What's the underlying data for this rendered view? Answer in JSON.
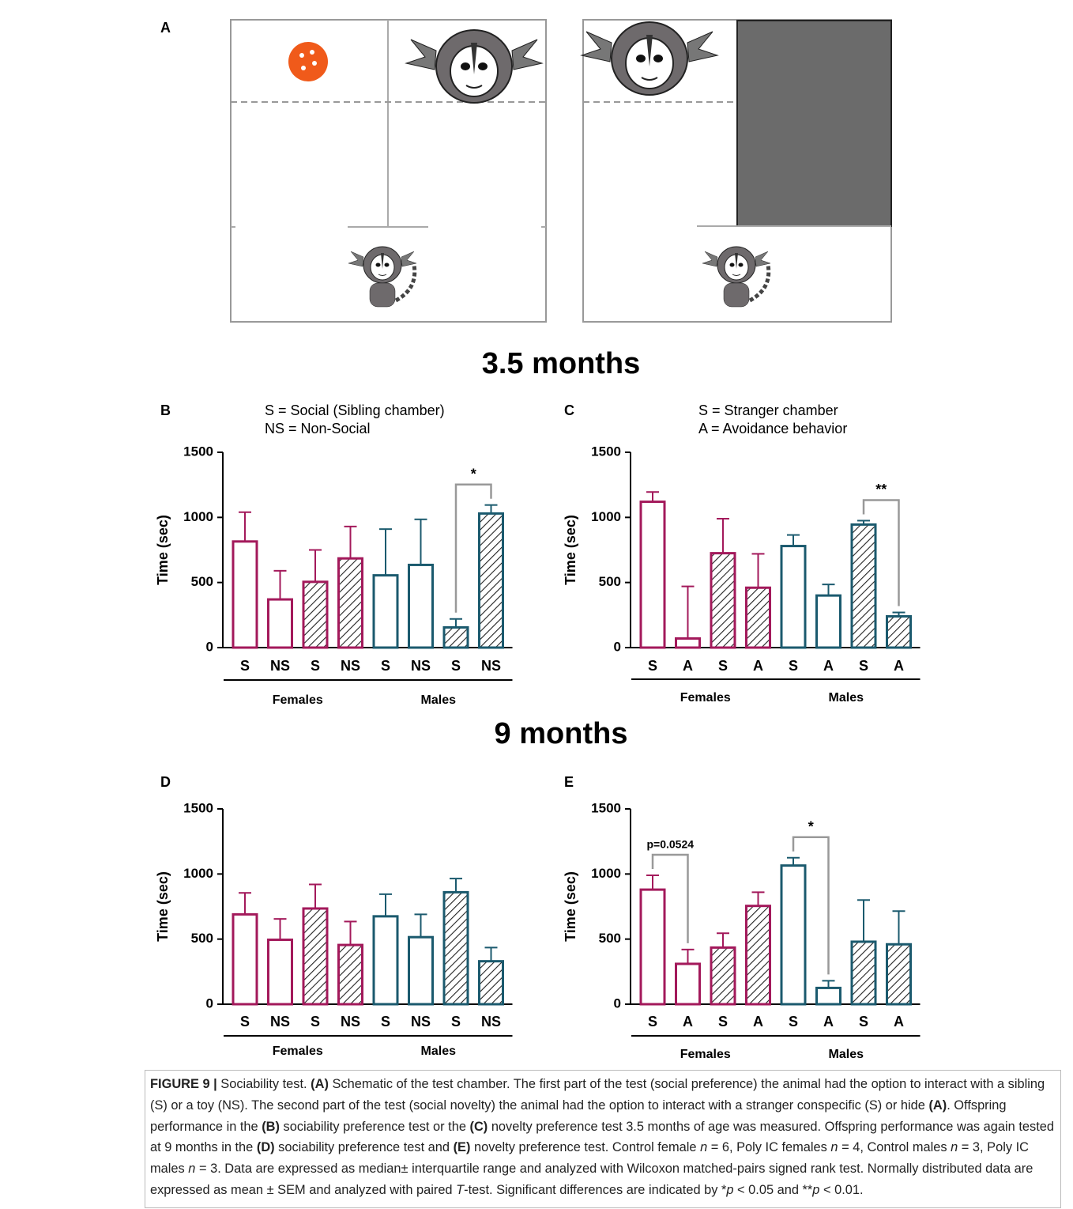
{
  "panel_a": {
    "label": "A"
  },
  "headings": [
    "3.5 months",
    "9 months"
  ],
  "chart_data": [
    {
      "type": "bar",
      "label": "B",
      "notes": [
        "S = Social (Sibling chamber)",
        "NS = Non-Social"
      ],
      "ylabel": "Time (sec)",
      "categories": [
        "S",
        "NS",
        "S",
        "NS",
        "S",
        "NS",
        "S",
        "NS"
      ],
      "values": [
        815,
        370,
        505,
        685,
        555,
        635,
        155,
        1030
      ],
      "errors": [
        225,
        220,
        245,
        245,
        355,
        350,
        65,
        65
      ],
      "colors": [
        "#a3195b",
        "#a3195b",
        "#a3195b",
        "#a3195b",
        "#1b5a6e",
        "#1b5a6e",
        "#1b5a6e",
        "#1b5a6e"
      ],
      "hatched": [
        false,
        false,
        true,
        true,
        false,
        false,
        true,
        true
      ],
      "groups": [
        "Females",
        "Males"
      ],
      "ylim": [
        0,
        1500
      ],
      "yticks": [
        0,
        500,
        1000,
        1500
      ],
      "annotations": [
        {
          "text": "*",
          "from": 6,
          "to": 7
        }
      ]
    },
    {
      "type": "bar",
      "label": "C",
      "notes": [
        "S = Stranger chamber",
        "A = Avoidance behavior"
      ],
      "ylabel": "Time (sec)",
      "categories": [
        "S",
        "A",
        "S",
        "A",
        "S",
        "A",
        "S",
        "A"
      ],
      "values": [
        1120,
        70,
        725,
        460,
        780,
        400,
        945,
        240
      ],
      "errors": [
        75,
        400,
        265,
        260,
        85,
        85,
        30,
        30
      ],
      "colors": [
        "#a3195b",
        "#a3195b",
        "#a3195b",
        "#a3195b",
        "#1b5a6e",
        "#1b5a6e",
        "#1b5a6e",
        "#1b5a6e"
      ],
      "hatched": [
        false,
        false,
        true,
        true,
        false,
        false,
        true,
        true
      ],
      "groups": [
        "Females",
        "Males"
      ],
      "ylim": [
        0,
        1500
      ],
      "yticks": [
        0,
        500,
        1000,
        1500
      ],
      "annotations": [
        {
          "text": "**",
          "from": 6,
          "to": 7
        }
      ]
    },
    {
      "type": "bar",
      "label": "D",
      "ylabel": "Time (sec)",
      "categories": [
        "S",
        "NS",
        "S",
        "NS",
        "S",
        "NS",
        "S",
        "NS"
      ],
      "values": [
        690,
        495,
        735,
        455,
        675,
        515,
        860,
        330
      ],
      "errors": [
        165,
        160,
        185,
        180,
        170,
        175,
        105,
        105
      ],
      "colors": [
        "#a3195b",
        "#a3195b",
        "#a3195b",
        "#a3195b",
        "#1b5a6e",
        "#1b5a6e",
        "#1b5a6e",
        "#1b5a6e"
      ],
      "hatched": [
        false,
        false,
        true,
        true,
        false,
        false,
        true,
        true
      ],
      "groups": [
        "Females",
        "Males"
      ],
      "ylim": [
        0,
        1500
      ],
      "yticks": [
        0,
        500,
        1000,
        1500
      ]
    },
    {
      "type": "bar",
      "label": "E",
      "ylabel": "Time (sec)",
      "categories": [
        "S",
        "A",
        "S",
        "A",
        "S",
        "A",
        "S",
        "A"
      ],
      "values": [
        880,
        310,
        435,
        755,
        1065,
        125,
        480,
        460
      ],
      "errors": [
        110,
        110,
        110,
        105,
        60,
        55,
        320,
        255
      ],
      "colors": [
        "#a3195b",
        "#a3195b",
        "#a3195b",
        "#a3195b",
        "#1b5a6e",
        "#1b5a6e",
        "#1b5a6e",
        "#1b5a6e"
      ],
      "hatched": [
        false,
        false,
        true,
        true,
        false,
        false,
        true,
        true
      ],
      "groups": [
        "Females",
        "Males"
      ],
      "ylim": [
        0,
        1500
      ],
      "yticks": [
        0,
        500,
        1000,
        1500
      ],
      "annotations": [
        {
          "text": "p=0.0524",
          "from": 0,
          "to": 1
        },
        {
          "text": "*",
          "from": 4,
          "to": 5
        }
      ]
    }
  ],
  "caption": [
    {
      "text": "FIGURE 9 |",
      "bold": true
    },
    {
      "text": " Sociability test. "
    },
    {
      "text": "(A)",
      "bold": true
    },
    {
      "text": " Schematic of the test chamber. The first part of the test (social preference) the animal had the option to interact with a sibling (S) or a toy (NS). The second part of the test (social novelty) the animal had the option to interact with a stranger conspecific (S) or hide "
    },
    {
      "text": "(A)",
      "bold": true
    },
    {
      "text": ". Offspring performance in the "
    },
    {
      "text": "(B)",
      "bold": true
    },
    {
      "text": " sociability preference test or the "
    },
    {
      "text": "(C)",
      "bold": true
    },
    {
      "text": " novelty preference test 3.5 months of age was measured. Offspring performance was again tested at 9 months in the "
    },
    {
      "text": "(D)",
      "bold": true
    },
    {
      "text": " sociability preference test and "
    },
    {
      "text": "(E)",
      "bold": true
    },
    {
      "text": " novelty preference test. Control female "
    },
    {
      "text": "n",
      "italic": true
    },
    {
      "text": " = 6, Poly IC females "
    },
    {
      "text": "n",
      "italic": true
    },
    {
      "text": " = 4, Control males "
    },
    {
      "text": "n",
      "italic": true
    },
    {
      "text": " = 3, Poly IC males "
    },
    {
      "text": "n",
      "italic": true
    },
    {
      "text": " = 3. Data are expressed as median± interquartile range and analyzed with Wilcoxon matched-pairs signed rank test. Normally distributed data are expressed as mean ± SEM and analyzed with paired "
    },
    {
      "text": "T",
      "italic": true
    },
    {
      "text": "-test. Significant differences are indicated by *"
    },
    {
      "text": "p",
      "italic": true
    },
    {
      "text": " < 0.05 and **"
    },
    {
      "text": "p",
      "italic": true
    },
    {
      "text": " < 0.01."
    }
  ]
}
